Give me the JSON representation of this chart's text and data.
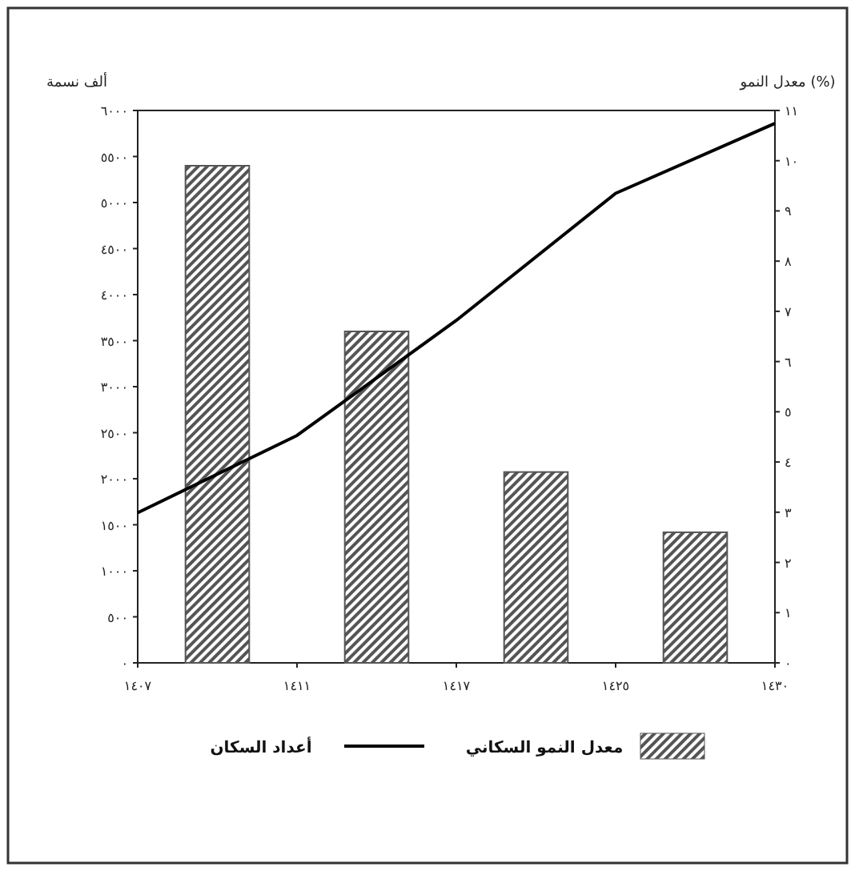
{
  "chart_data": {
    "type": "bar",
    "ylabel": "ألف نسمة",
    "y2label": "معدل النمو (%)",
    "categories": [
      "١٤٠٧",
      null,
      "١٤١١",
      null,
      "١٤١٧",
      null,
      "١٤٢٥",
      null,
      "١٤٣٠"
    ],
    "ylim": [
      0,
      6000
    ],
    "yticks": [
      {
        "value": 0,
        "label": "٠"
      },
      {
        "value": 500,
        "label": "٥٠٠"
      },
      {
        "value": 1000,
        "label": "١٠٠٠"
      },
      {
        "value": 1500,
        "label": "١٥٠٠"
      },
      {
        "value": 2000,
        "label": "٢٠٠٠"
      },
      {
        "value": 2500,
        "label": "٢٥٠٠"
      },
      {
        "value": 3000,
        "label": "٣٠٠٠"
      },
      {
        "value": 3500,
        "label": "٣٥٠٠"
      },
      {
        "value": 4000,
        "label": "٤٠٠٠"
      },
      {
        "value": 4500,
        "label": "٤٥٠٠"
      },
      {
        "value": 5000,
        "label": "٥٠٠٠"
      },
      {
        "value": 5500,
        "label": "٥٥٠٠"
      },
      {
        "value": 6000,
        "label": "٦٠٠٠"
      }
    ],
    "y2lim": [
      0,
      11
    ],
    "y2ticks": [
      {
        "value": 0,
        "label": "٠"
      },
      {
        "value": 1,
        "label": "١"
      },
      {
        "value": 2,
        "label": "٢"
      },
      {
        "value": 3,
        "label": "٣"
      },
      {
        "value": 4,
        "label": "٤"
      },
      {
        "value": 5,
        "label": "٥"
      },
      {
        "value": 6,
        "label": "٦"
      },
      {
        "value": 7,
        "label": "٧"
      },
      {
        "value": 8,
        "label": "٨"
      },
      {
        "value": 9,
        "label": "٩"
      },
      {
        "value": 10,
        "label": "١٠"
      },
      {
        "value": 11,
        "label": "١١"
      }
    ],
    "legend": "bottom",
    "series": [
      {
        "name": "معدل النمو السكاني",
        "axis": "y2",
        "values": [
          null,
          9.9,
          null,
          6.6,
          null,
          3.8,
          null,
          2.6,
          null
        ],
        "color": "#555555"
      },
      {
        "name": "أعداد السكان",
        "type": "line",
        "axis": "y",
        "values": [
          1630,
          null,
          2470,
          null,
          3720,
          null,
          5100,
          null,
          5860
        ],
        "color": "#000000"
      }
    ]
  }
}
